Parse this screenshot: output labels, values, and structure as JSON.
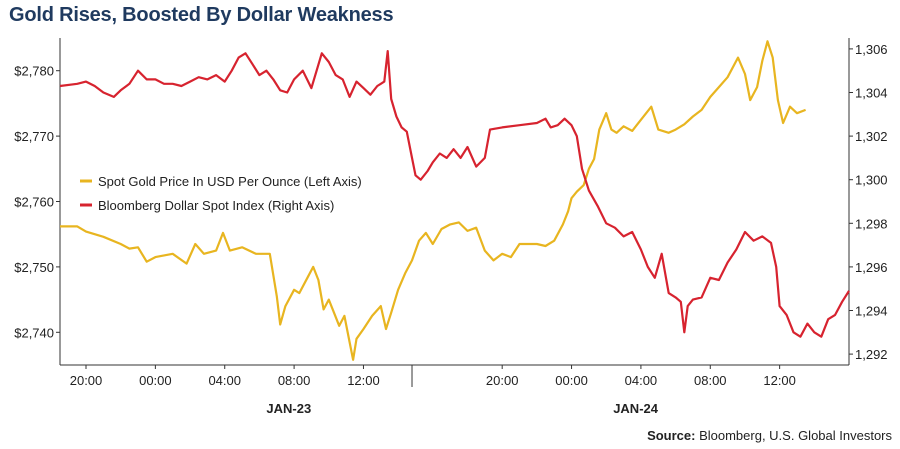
{
  "title": "Gold Rises, Boosted By Dollar Weakness",
  "source_label": "Source:",
  "source_text": " Bloomberg, U.S. Global Investors",
  "colors": {
    "gold": "#e8b520",
    "dollar": "#d7232f",
    "title": "#1f3a5f",
    "grid": "#e6e6e6"
  },
  "chart_data": {
    "type": "line",
    "title": "Gold Rises, Boosted By Dollar Weakness",
    "x_tick_labels": [
      "20:00",
      "00:00",
      "04:00",
      "08:00",
      "12:00",
      "20:00",
      "00:00",
      "04:00",
      "08:00",
      "12:00"
    ],
    "x_tick_hours": [
      20,
      24,
      28,
      32,
      36,
      44,
      48,
      52,
      56,
      60
    ],
    "x_range_hours": [
      18.5,
      61.5
    ],
    "date_labels": [
      {
        "text": "JAN-23",
        "hour": 34
      },
      {
        "text": "JAN-24",
        "hour": 54
      }
    ],
    "day_separator_hour": 38.8,
    "left_axis": {
      "ticks": [
        2740,
        2750,
        2760,
        2770,
        2780
      ],
      "tick_labels": [
        "$2,740",
        "$2,750",
        "$2,760",
        "$2,770",
        "$2,780"
      ],
      "range": [
        2735,
        2785
      ]
    },
    "right_axis": {
      "ticks": [
        1292,
        1294,
        1296,
        1298,
        1300,
        1302,
        1304,
        1306
      ],
      "tick_labels": [
        "1,292",
        "1,294",
        "1,296",
        "1,298",
        "1,300",
        "1,302",
        "1,304",
        "1,306"
      ],
      "range": [
        1291.5,
        1306.5
      ]
    },
    "legend_position": "left-middle",
    "series": [
      {
        "name": "Spot Gold Price In USD Per Ounce (Left Axis)",
        "axis": "left",
        "points": [
          [
            18.5,
            2756.2
          ],
          [
            19.5,
            2756.2
          ],
          [
            20.0,
            2755.4
          ],
          [
            21.0,
            2754.6
          ],
          [
            22.0,
            2753.5
          ],
          [
            22.5,
            2752.8
          ],
          [
            23.0,
            2753.0
          ],
          [
            23.5,
            2750.8
          ],
          [
            24.0,
            2751.5
          ],
          [
            25.0,
            2752.0
          ],
          [
            25.8,
            2750.5
          ],
          [
            26.3,
            2753.5
          ],
          [
            26.8,
            2752.0
          ],
          [
            27.5,
            2752.5
          ],
          [
            27.9,
            2755.2
          ],
          [
            28.3,
            2752.5
          ],
          [
            29.0,
            2753.0
          ],
          [
            29.8,
            2752.0
          ],
          [
            30.6,
            2752.0
          ],
          [
            31.0,
            2745.5
          ],
          [
            31.2,
            2741.2
          ],
          [
            31.5,
            2744.0
          ],
          [
            32.0,
            2746.5
          ],
          [
            32.3,
            2746.0
          ],
          [
            32.8,
            2748.5
          ],
          [
            33.1,
            2750.0
          ],
          [
            33.4,
            2748.0
          ],
          [
            33.7,
            2743.5
          ],
          [
            34.0,
            2745.0
          ],
          [
            34.3,
            2743.0
          ],
          [
            34.6,
            2741.0
          ],
          [
            34.9,
            2742.5
          ],
          [
            35.2,
            2738.5
          ],
          [
            35.4,
            2735.8
          ],
          [
            35.6,
            2739.0
          ],
          [
            36.0,
            2740.5
          ],
          [
            36.5,
            2742.5
          ],
          [
            37.0,
            2744.0
          ],
          [
            37.3,
            2740.5
          ],
          [
            37.6,
            2743.0
          ],
          [
            38.0,
            2746.5
          ],
          [
            38.4,
            2749.0
          ],
          [
            38.8,
            2751.0
          ],
          [
            39.2,
            2754.0
          ],
          [
            39.6,
            2755.2
          ],
          [
            40.0,
            2753.5
          ],
          [
            40.5,
            2755.8
          ],
          [
            41.0,
            2756.5
          ],
          [
            41.5,
            2756.8
          ],
          [
            42.0,
            2755.5
          ],
          [
            42.5,
            2756.0
          ],
          [
            43.0,
            2752.5
          ],
          [
            43.5,
            2751.0
          ],
          [
            44.0,
            2752.0
          ],
          [
            44.5,
            2751.5
          ],
          [
            45.0,
            2753.5
          ],
          [
            46.0,
            2753.5
          ],
          [
            46.5,
            2753.2
          ],
          [
            47.0,
            2754.0
          ],
          [
            47.5,
            2756.5
          ],
          [
            47.8,
            2758.5
          ],
          [
            48.0,
            2760.5
          ],
          [
            48.3,
            2761.5
          ],
          [
            48.7,
            2762.5
          ],
          [
            49.0,
            2765.0
          ],
          [
            49.3,
            2766.5
          ],
          [
            49.6,
            2771.0
          ],
          [
            50.0,
            2773.5
          ],
          [
            50.3,
            2771.0
          ],
          [
            50.6,
            2770.5
          ],
          [
            51.0,
            2771.5
          ],
          [
            51.5,
            2770.8
          ],
          [
            52.0,
            2772.5
          ],
          [
            52.6,
            2774.5
          ],
          [
            53.0,
            2771.0
          ],
          [
            53.6,
            2770.5
          ],
          [
            54.0,
            2771.0
          ],
          [
            54.5,
            2771.8
          ],
          [
            55.0,
            2773.0
          ],
          [
            55.5,
            2774.0
          ],
          [
            56.0,
            2776.0
          ],
          [
            56.5,
            2777.5
          ],
          [
            57.0,
            2779.0
          ],
          [
            57.6,
            2782.0
          ],
          [
            58.0,
            2779.5
          ],
          [
            58.3,
            2775.5
          ],
          [
            58.7,
            2777.5
          ],
          [
            59.0,
            2781.5
          ],
          [
            59.3,
            2784.5
          ],
          [
            59.6,
            2782.0
          ],
          [
            59.9,
            2775.5
          ],
          [
            60.2,
            2772.0
          ],
          [
            60.6,
            2774.5
          ],
          [
            61.0,
            2773.5
          ],
          [
            61.5,
            2774.0
          ]
        ]
      },
      {
        "name": "Bloomberg Dollar Spot Index (Right Axis)",
        "axis": "right",
        "points": [
          [
            18.5,
            1304.3
          ],
          [
            19.5,
            1304.4
          ],
          [
            20.0,
            1304.5
          ],
          [
            20.5,
            1304.3
          ],
          [
            21.0,
            1304.0
          ],
          [
            21.6,
            1303.8
          ],
          [
            22.0,
            1304.1
          ],
          [
            22.5,
            1304.4
          ],
          [
            23.0,
            1305.0
          ],
          [
            23.5,
            1304.6
          ],
          [
            24.0,
            1304.6
          ],
          [
            24.5,
            1304.4
          ],
          [
            25.0,
            1304.4
          ],
          [
            25.5,
            1304.3
          ],
          [
            26.0,
            1304.5
          ],
          [
            26.5,
            1304.7
          ],
          [
            27.0,
            1304.6
          ],
          [
            27.5,
            1304.8
          ],
          [
            28.0,
            1304.5
          ],
          [
            28.4,
            1305.0
          ],
          [
            28.8,
            1305.6
          ],
          [
            29.2,
            1305.8
          ],
          [
            29.6,
            1305.3
          ],
          [
            30.0,
            1304.8
          ],
          [
            30.4,
            1305.0
          ],
          [
            30.8,
            1304.6
          ],
          [
            31.2,
            1304.1
          ],
          [
            31.6,
            1304.0
          ],
          [
            32.0,
            1304.6
          ],
          [
            32.5,
            1305.0
          ],
          [
            33.0,
            1304.2
          ],
          [
            33.3,
            1305.0
          ],
          [
            33.6,
            1305.8
          ],
          [
            34.0,
            1305.4
          ],
          [
            34.4,
            1304.8
          ],
          [
            34.8,
            1304.6
          ],
          [
            35.2,
            1303.8
          ],
          [
            35.6,
            1304.5
          ],
          [
            36.0,
            1304.2
          ],
          [
            36.4,
            1303.9
          ],
          [
            36.8,
            1304.3
          ],
          [
            37.2,
            1304.5
          ],
          [
            37.4,
            1305.9
          ],
          [
            37.6,
            1303.7
          ],
          [
            37.9,
            1302.9
          ],
          [
            38.2,
            1302.4
          ],
          [
            38.5,
            1302.2
          ],
          [
            38.8,
            1301.0
          ],
          [
            39.0,
            1300.2
          ],
          [
            39.3,
            1300.0
          ],
          [
            39.7,
            1300.4
          ],
          [
            40.0,
            1300.8
          ],
          [
            40.4,
            1301.2
          ],
          [
            40.8,
            1301.0
          ],
          [
            41.2,
            1301.4
          ],
          [
            41.6,
            1301.0
          ],
          [
            42.0,
            1301.5
          ],
          [
            42.5,
            1300.6
          ],
          [
            43.0,
            1301.0
          ],
          [
            43.3,
            1302.3
          ],
          [
            44.0,
            1302.4
          ],
          [
            45.0,
            1302.5
          ],
          [
            46.0,
            1302.6
          ],
          [
            46.5,
            1302.8
          ],
          [
            46.8,
            1302.4
          ],
          [
            47.2,
            1302.5
          ],
          [
            47.6,
            1302.8
          ],
          [
            48.0,
            1302.5
          ],
          [
            48.3,
            1302.0
          ],
          [
            48.6,
            1300.5
          ],
          [
            49.0,
            1299.5
          ],
          [
            49.5,
            1298.8
          ],
          [
            50.0,
            1298.0
          ],
          [
            50.5,
            1297.8
          ],
          [
            51.0,
            1297.4
          ],
          [
            51.5,
            1297.6
          ],
          [
            52.0,
            1296.8
          ],
          [
            52.4,
            1296.0
          ],
          [
            52.8,
            1295.5
          ],
          [
            53.2,
            1296.6
          ],
          [
            53.6,
            1294.8
          ],
          [
            54.0,
            1294.6
          ],
          [
            54.3,
            1294.4
          ],
          [
            54.5,
            1293.0
          ],
          [
            54.7,
            1294.2
          ],
          [
            55.0,
            1294.5
          ],
          [
            55.5,
            1294.6
          ],
          [
            56.0,
            1295.5
          ],
          [
            56.5,
            1295.4
          ],
          [
            57.0,
            1296.2
          ],
          [
            57.5,
            1296.8
          ],
          [
            58.0,
            1297.6
          ],
          [
            58.5,
            1297.2
          ],
          [
            59.0,
            1297.4
          ],
          [
            59.5,
            1297.1
          ],
          [
            59.8,
            1296.0
          ],
          [
            60.0,
            1294.2
          ],
          [
            60.4,
            1293.8
          ],
          [
            60.8,
            1293.0
          ],
          [
            61.2,
            1292.8
          ],
          [
            61.6,
            1293.4
          ],
          [
            62.0,
            1293.0
          ],
          [
            62.4,
            1292.8
          ],
          [
            62.8,
            1293.6
          ],
          [
            63.2,
            1293.8
          ],
          [
            63.6,
            1294.4
          ],
          [
            64.0,
            1294.9
          ]
        ]
      }
    ]
  }
}
